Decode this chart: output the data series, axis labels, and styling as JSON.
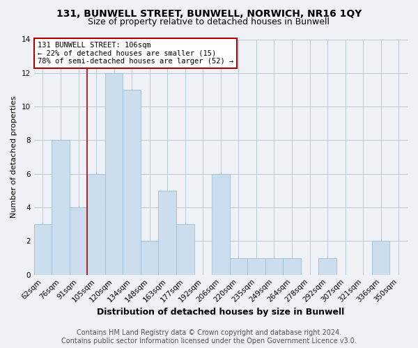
{
  "title": "131, BUNWELL STREET, BUNWELL, NORWICH, NR16 1QY",
  "subtitle": "Size of property relative to detached houses in Bunwell",
  "xlabel": "Distribution of detached houses by size in Bunwell",
  "ylabel": "Number of detached properties",
  "categories": [
    "62sqm",
    "76sqm",
    "91sqm",
    "105sqm",
    "120sqm",
    "134sqm",
    "148sqm",
    "163sqm",
    "177sqm",
    "192sqm",
    "206sqm",
    "220sqm",
    "235sqm",
    "249sqm",
    "264sqm",
    "278sqm",
    "292sqm",
    "307sqm",
    "321sqm",
    "336sqm",
    "350sqm"
  ],
  "values": [
    3,
    8,
    4,
    6,
    12,
    11,
    2,
    5,
    3,
    0,
    6,
    1,
    1,
    1,
    1,
    0,
    1,
    0,
    0,
    2,
    0
  ],
  "bar_color": "#ccdded",
  "bar_edge_color": "#9bbdd4",
  "highlight_line_index": 3,
  "highlight_line_color": "#aa0000",
  "annotation_line1": "131 BUNWELL STREET: 106sqm",
  "annotation_line2": "← 22% of detached houses are smaller (15)",
  "annotation_line3": "78% of semi-detached houses are larger (52) →",
  "annotation_box_facecolor": "white",
  "annotation_box_edgecolor": "#aa0000",
  "ylim": [
    0,
    14
  ],
  "yticks": [
    0,
    2,
    4,
    6,
    8,
    10,
    12,
    14
  ],
  "footer_line1": "Contains HM Land Registry data © Crown copyright and database right 2024.",
  "footer_line2": "Contains public sector information licensed under the Open Government Licence v3.0.",
  "bg_color": "#eef2f7",
  "plot_bg_color": "#eef2f7",
  "grid_color": "#b8c8d8",
  "title_fontsize": 10,
  "subtitle_fontsize": 9,
  "xlabel_fontsize": 9,
  "ylabel_fontsize": 8,
  "tick_fontsize": 7.5,
  "annotation_fontsize": 7.5,
  "footer_fontsize": 7
}
